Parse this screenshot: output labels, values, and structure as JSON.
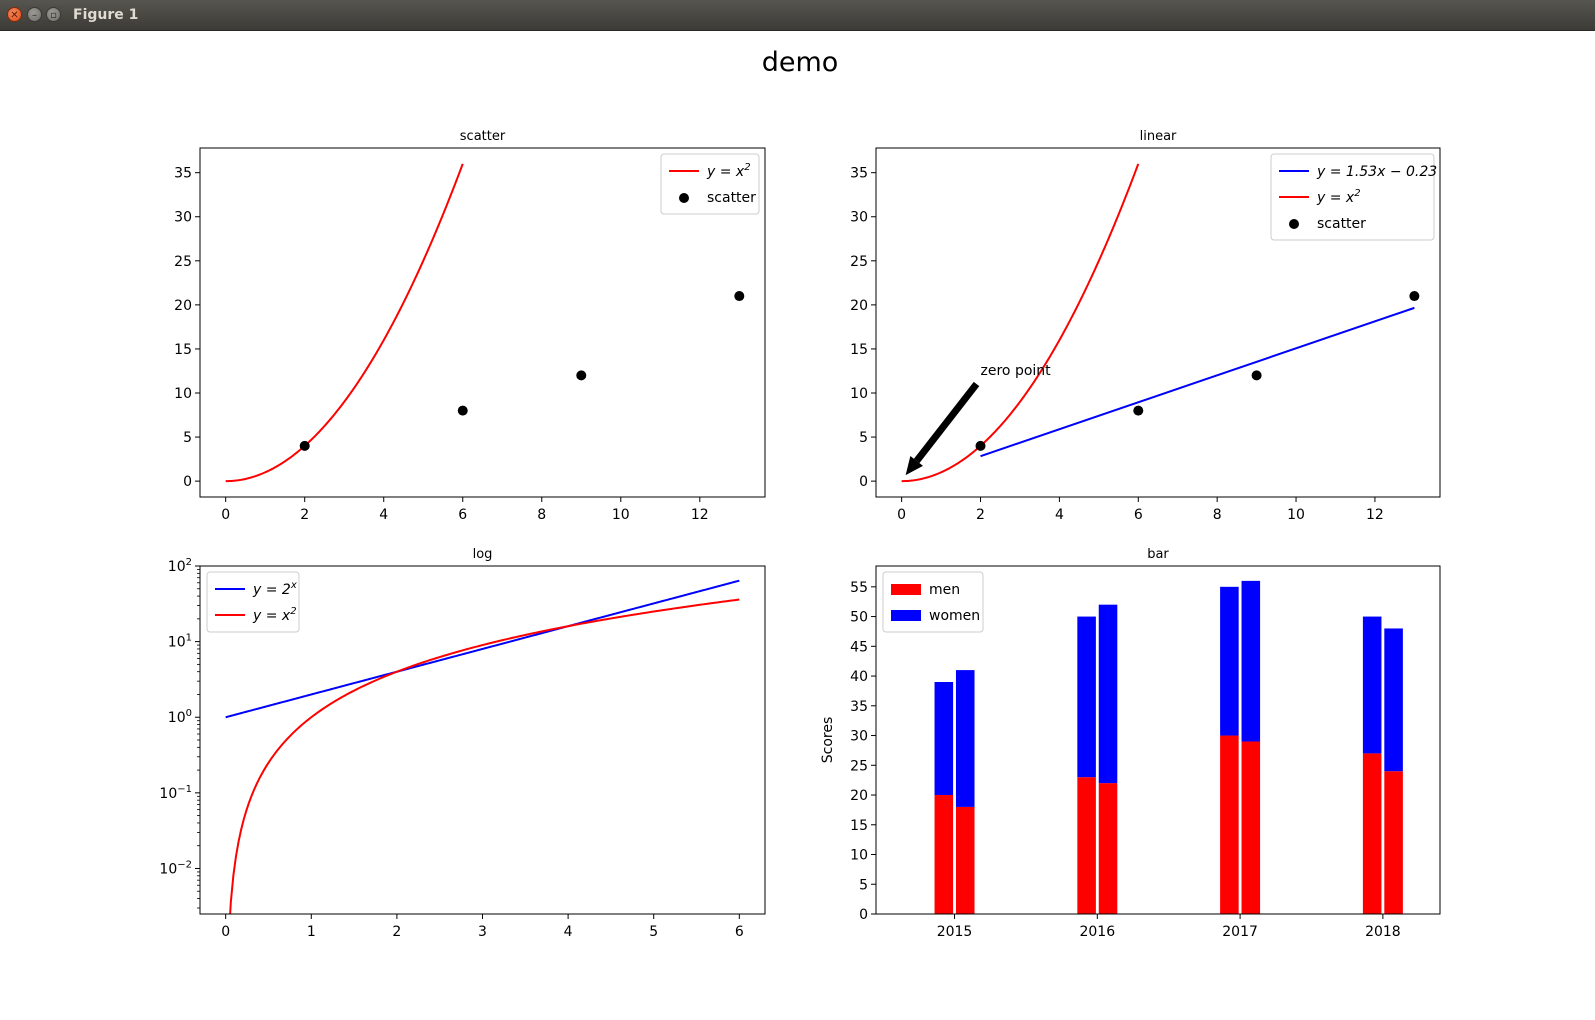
{
  "window": {
    "title": "Figure 1"
  },
  "figure": {
    "suptitle": "demo"
  },
  "colors": {
    "red": "#ff0000",
    "blue": "#0000ff",
    "black": "#000000"
  },
  "chart_data": [
    {
      "type": "scatter",
      "title": "scatter",
      "xlim": [
        -0.65,
        13.65
      ],
      "ylim": [
        -1.8,
        37.8
      ],
      "xticks": [
        0,
        2,
        4,
        6,
        8,
        10,
        12
      ],
      "yticks": [
        0,
        5,
        10,
        15,
        20,
        25,
        30,
        35
      ],
      "series": [
        {
          "name": "$y = x^2$",
          "kind": "curve",
          "func": "x^2",
          "xrange": [
            0,
            6
          ],
          "color": "#ff0000"
        },
        {
          "name": "scatter",
          "kind": "points",
          "x": [
            2,
            6,
            9,
            13
          ],
          "y": [
            4,
            8,
            12,
            21
          ],
          "color": "#000000"
        }
      ],
      "legend": {
        "placement": "upper right",
        "entries": [
          {
            "label": "y = x",
            "sup": "2",
            "kind": "line",
            "color": "#ff0000"
          },
          {
            "label": "scatter",
            "sup": "",
            "kind": "marker",
            "color": "#000000"
          }
        ]
      }
    },
    {
      "type": "line",
      "title": "linear",
      "xlim": [
        -0.65,
        13.65
      ],
      "ylim": [
        -1.8,
        37.8
      ],
      "xticks": [
        0,
        2,
        4,
        6,
        8,
        10,
        12
      ],
      "yticks": [
        0,
        5,
        10,
        15,
        20,
        25,
        30,
        35
      ],
      "series": [
        {
          "name": "$y = 1.53x - 0.23$",
          "kind": "line",
          "x": [
            2,
            13
          ],
          "y": [
            2.83,
            19.66
          ],
          "color": "#0000ff"
        },
        {
          "name": "$y = x^2$",
          "kind": "curve",
          "func": "x^2",
          "xrange": [
            0,
            6
          ],
          "color": "#ff0000"
        },
        {
          "name": "scatter",
          "kind": "points",
          "x": [
            2,
            6,
            9,
            13
          ],
          "y": [
            4,
            8,
            12,
            21
          ],
          "color": "#000000"
        }
      ],
      "annotation": {
        "text": "zero point",
        "xy": [
          0,
          0
        ],
        "xytext": [
          2,
          12.5
        ]
      },
      "legend": {
        "placement": "upper right",
        "entries": [
          {
            "label": "y = 1.53x − 0.23",
            "sup": "",
            "kind": "line",
            "color": "#0000ff"
          },
          {
            "label": "y = x",
            "sup": "2",
            "kind": "line",
            "color": "#ff0000"
          },
          {
            "label": "scatter",
            "sup": "",
            "kind": "marker",
            "color": "#000000"
          }
        ]
      }
    },
    {
      "type": "line",
      "title": "log",
      "yscale": "log",
      "xlim": [
        -0.3,
        6.3
      ],
      "ylim": [
        0.0025,
        100
      ],
      "xticks": [
        0,
        1,
        2,
        3,
        4,
        5,
        6
      ],
      "yticks": [
        {
          "base": "10",
          "exp": "−2",
          "value": 0.01
        },
        {
          "base": "10",
          "exp": "−1",
          "value": 0.1
        },
        {
          "base": "10",
          "exp": "0",
          "value": 1
        },
        {
          "base": "10",
          "exp": "1",
          "value": 10
        },
        {
          "base": "10",
          "exp": "2",
          "value": 100
        }
      ],
      "series": [
        {
          "name": "$y = 2^x$",
          "kind": "curve",
          "func": "2^x",
          "xrange": [
            0,
            6
          ],
          "color": "#0000ff"
        },
        {
          "name": "$y = x^2$",
          "kind": "curve",
          "func": "x^2",
          "xrange": [
            0,
            6
          ],
          "color": "#ff0000"
        }
      ],
      "legend": {
        "placement": "upper left",
        "entries": [
          {
            "label": "y = 2",
            "sup": "x",
            "kind": "line",
            "color": "#0000ff"
          },
          {
            "label": "y = x",
            "sup": "2",
            "kind": "line",
            "color": "#ff0000"
          }
        ]
      }
    },
    {
      "type": "bar",
      "title": "bar",
      "ylabel": "Scores",
      "categories": [
        "2015",
        "2016",
        "2017",
        "2018"
      ],
      "ylim": [
        0,
        58.5
      ],
      "yticks": [
        0,
        5,
        10,
        15,
        20,
        25,
        30,
        35,
        40,
        45,
        50,
        55
      ],
      "series": [
        {
          "name": "men",
          "color": "#ff0000",
          "values": [
            [
              20,
              18
            ],
            [
              23,
              22
            ],
            [
              30,
              29
            ],
            [
              27,
              24
            ]
          ]
        },
        {
          "name": "women",
          "color": "#0000ff",
          "values": [
            [
              19,
              23
            ],
            [
              27,
              30
            ],
            [
              25,
              27
            ],
            [
              23,
              24
            ]
          ]
        }
      ],
      "legend": {
        "placement": "upper left",
        "entries": [
          {
            "label": "men",
            "sup": "",
            "kind": "patch",
            "color": "#ff0000"
          },
          {
            "label": "women",
            "sup": "",
            "kind": "patch",
            "color": "#0000ff"
          }
        ]
      }
    }
  ]
}
